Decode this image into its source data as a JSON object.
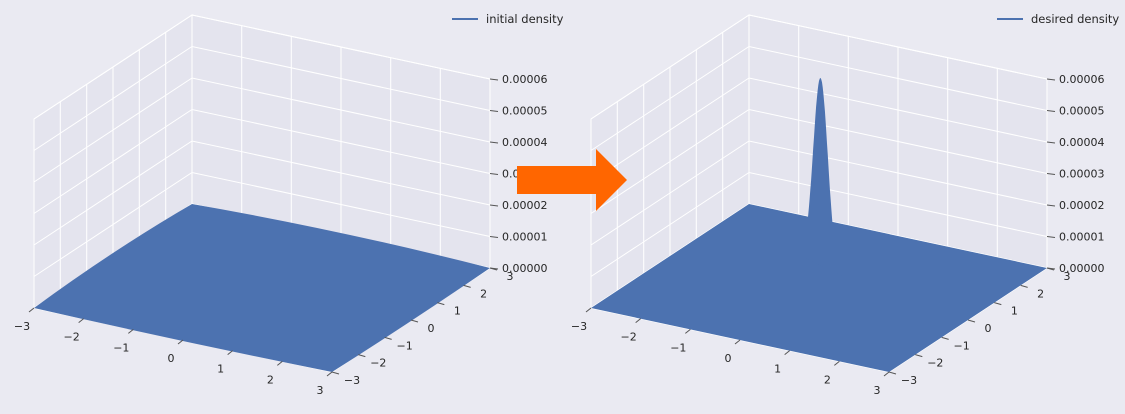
{
  "colors": {
    "pane_background": "#EAEAF2",
    "grid": "#FFFFFF",
    "surface": "#4C72B0",
    "arrow": "#FF6600",
    "text": "#262626"
  },
  "arrow_icon": "right-arrow-icon",
  "chart_data": [
    {
      "type": "surface3d",
      "legend": "initial density",
      "legend_position": "top-right",
      "grid": true,
      "x_ticks": [
        "−3",
        "−2",
        "−1",
        "0",
        "1",
        "2",
        "3"
      ],
      "y_ticks": [
        "−3",
        "−2",
        "−1",
        "0",
        "1",
        "2",
        "3"
      ],
      "z_ticks": [
        "0.00000",
        "0.00001",
        "0.00002",
        "0.00003",
        "0.00004",
        "0.00005",
        "0.00006"
      ],
      "xlim": [
        -3,
        3
      ],
      "ylim": [
        -3,
        3
      ],
      "zlim": [
        0,
        6e-05
      ],
      "surface": {
        "kind": "flat",
        "peak": 0.0
      }
    },
    {
      "type": "surface3d",
      "legend": "desired density",
      "legend_position": "top-right",
      "grid": true,
      "x_ticks": [
        "−3",
        "−2",
        "−1",
        "0",
        "1",
        "2",
        "3"
      ],
      "y_ticks": [
        "−3",
        "−2",
        "−1",
        "0",
        "1",
        "2",
        "3"
      ],
      "z_ticks": [
        "0.00000",
        "0.00001",
        "0.00002",
        "0.00003",
        "0.00004",
        "0.00005",
        "0.00006"
      ],
      "xlim": [
        -3,
        3
      ],
      "ylim": [
        -3,
        3
      ],
      "zlim": [
        0,
        6e-05
      ],
      "surface": {
        "kind": "gaussian",
        "peak": 5.95e-05,
        "center": [
          -0.5,
          1.0
        ],
        "sigma": 0.35
      }
    }
  ]
}
